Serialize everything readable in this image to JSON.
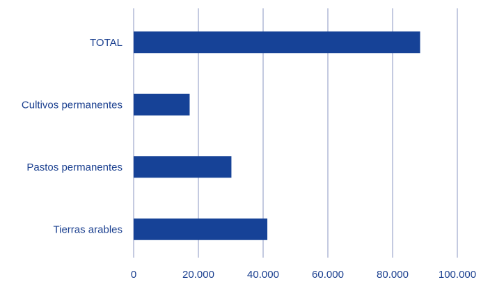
{
  "chart_data": {
    "type": "bar",
    "orientation": "horizontal",
    "categories": [
      "TOTAL",
      "Cultivos permanentes",
      "Pastos permanentes ",
      "Tierras arables"
    ],
    "values": [
      88500,
      17300,
      30200,
      41300
    ],
    "xticks": [
      "0",
      "20.000",
      "40.000",
      "60.000",
      "80.000",
      "100.000"
    ],
    "xlim": [
      0,
      100000
    ],
    "title": "",
    "xlabel": "",
    "ylabel": "",
    "grid": "vertical",
    "bar_color": "#164297"
  }
}
